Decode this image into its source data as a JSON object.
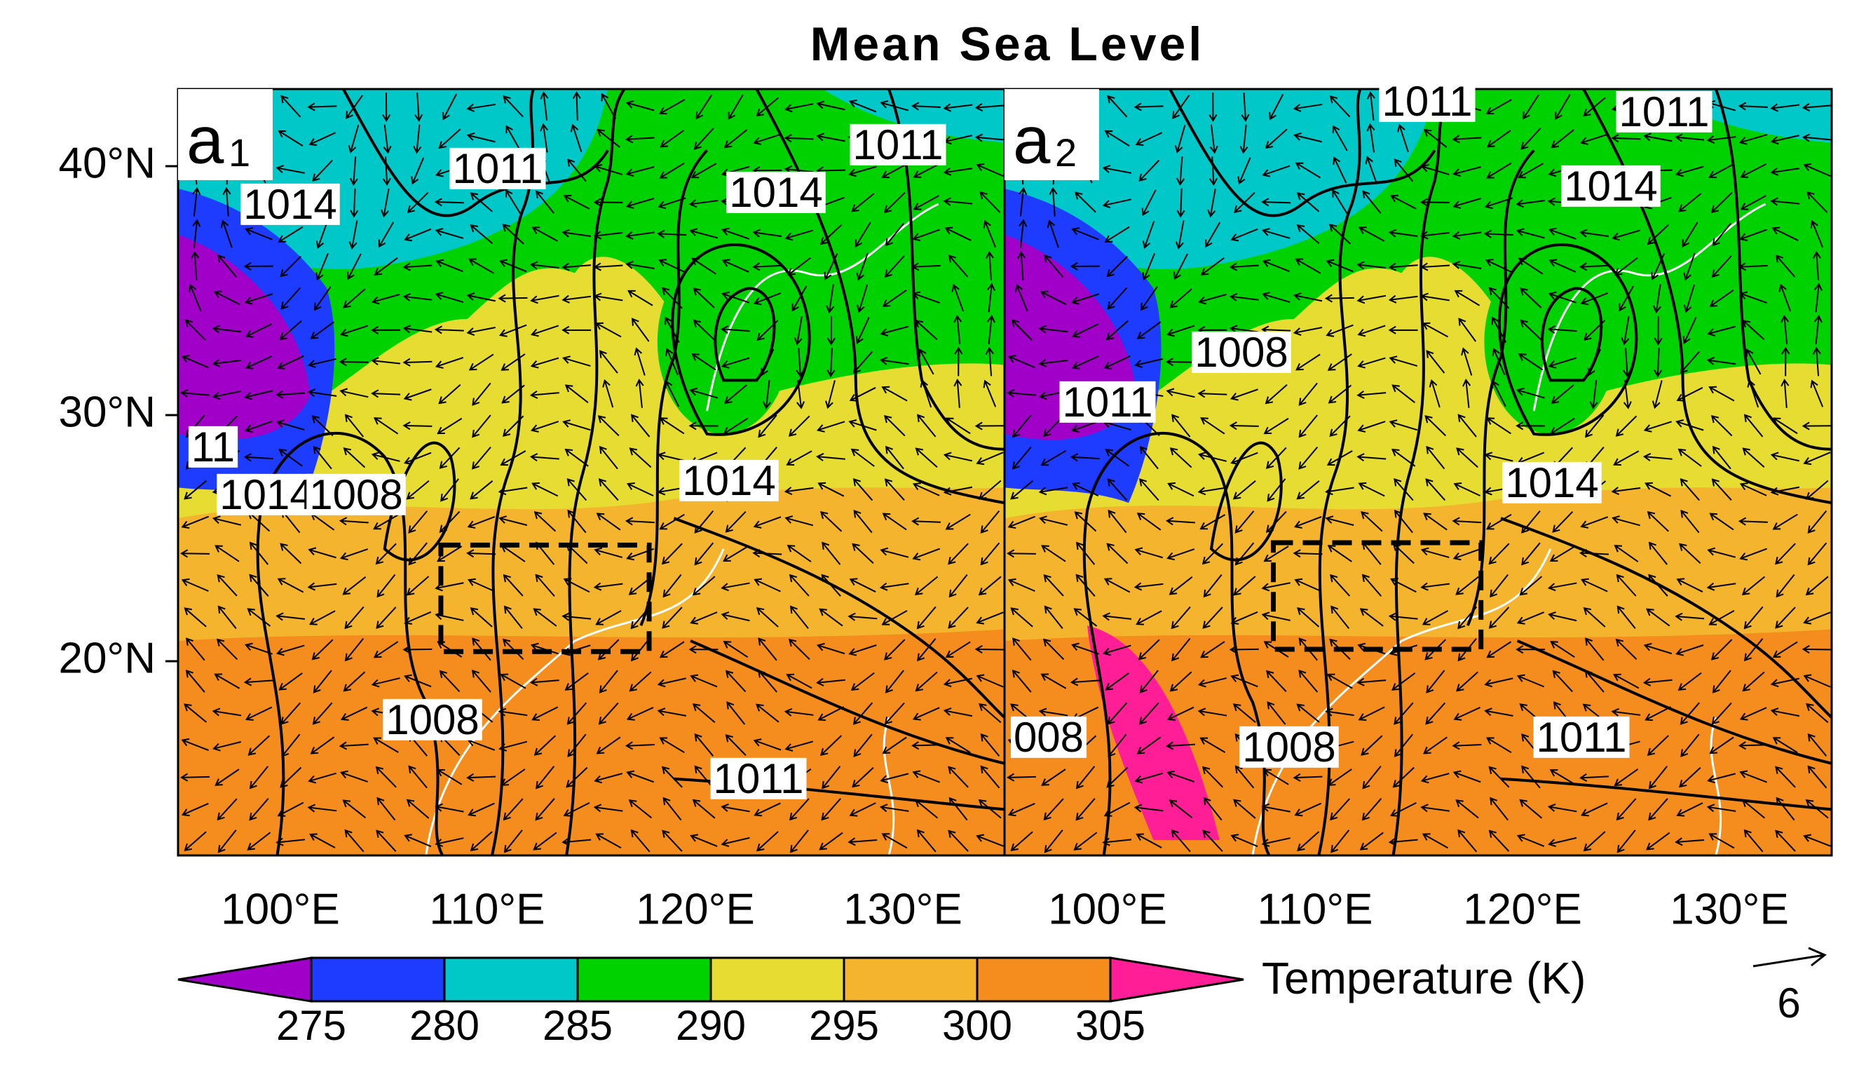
{
  "title": "Mean Sea Level",
  "panels": [
    {
      "label": "a",
      "label_index": "1",
      "contour_labels": [
        "1014",
        "1011",
        "1011",
        "1014",
        "11",
        "1014",
        "1008",
        "1014",
        "1008",
        "1011"
      ]
    },
    {
      "label": "a",
      "label_index": "2",
      "contour_labels": [
        "1011",
        "1011",
        "1014",
        "1008",
        "1011",
        "1014",
        "008",
        "1008",
        "1011"
      ]
    }
  ],
  "latitude_labels": [
    "40°N",
    "30°N",
    "20°N"
  ],
  "longitude_labels": [
    "100°E",
    "110°E",
    "120°E",
    "130°E"
  ],
  "colorbar": {
    "title": "Temperature (K)",
    "ticks": [
      275,
      280,
      285,
      290,
      295,
      300,
      305
    ],
    "colors": [
      "#a000c8",
      "#1e3cff",
      "#00c8c8",
      "#00d200",
      "#e6dc32",
      "#f5b42d",
      "#f58c1e",
      "#ff1e96"
    ]
  },
  "vector_reference": 6
}
